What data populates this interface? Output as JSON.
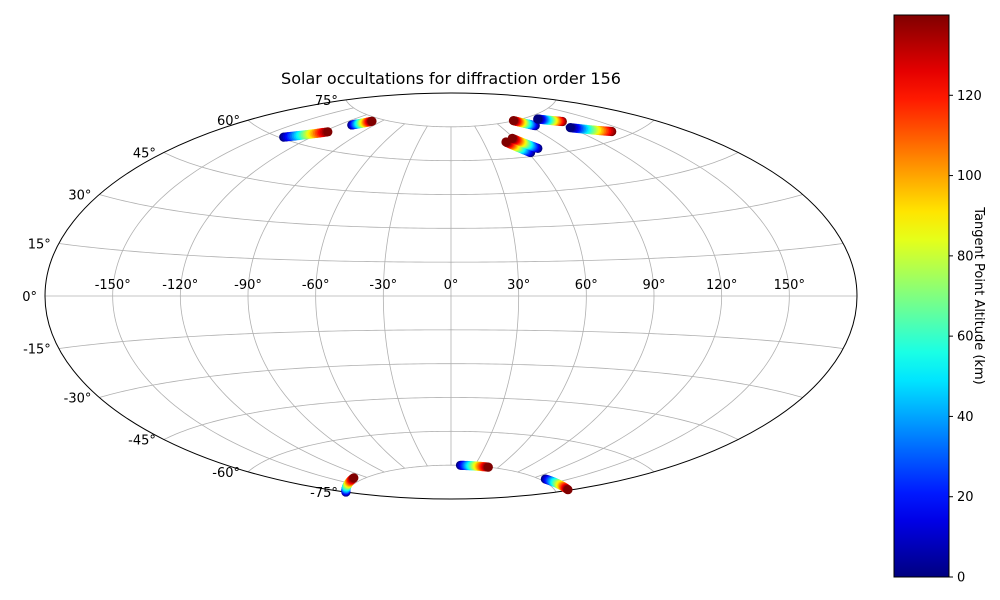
{
  "chart_data": {
    "type": "scatter",
    "projection": "aitoff",
    "title": "Solar occultations for diffraction order 156",
    "grid": true,
    "lon_ticks": [
      -150,
      -120,
      -90,
      -60,
      -30,
      0,
      30,
      60,
      90,
      120,
      150
    ],
    "lon_tick_labels": [
      "-150°",
      "-120°",
      "-90°",
      "-60°",
      "-30°",
      "0°",
      "30°",
      "60°",
      "90°",
      "120°",
      "150°"
    ],
    "lat_ticks": [
      -75,
      -60,
      -45,
      -30,
      -15,
      0,
      15,
      30,
      45,
      60,
      75
    ],
    "lat_tick_labels": [
      "-75°",
      "-60°",
      "-45°",
      "-30°",
      "-15°",
      "0°",
      "15°",
      "30°",
      "45°",
      "60°",
      "75°"
    ],
    "colorbar": {
      "label": "Tangent Point Altitude (km)",
      "range": [
        0,
        140
      ],
      "ticks": [
        0,
        20,
        40,
        60,
        80,
        100,
        120
      ],
      "tick_labels": [
        "0",
        "20",
        "40",
        "60",
        "80",
        "100",
        "120"
      ],
      "colormap": "jet"
    },
    "series": [
      {
        "lon": [
          -137.0,
          -116.5
        ],
        "lat": [
          60.5,
          66.2
        ],
        "alt": [
          0,
          140
        ]
      },
      {
        "lon": [
          -110.0,
          -99.5
        ],
        "lat": [
          70.5,
          73.5
        ],
        "alt": [
          0,
          140
        ]
      },
      {
        "lon": [
          62.0,
          50.0
        ],
        "lat": [
          61.7,
          67.1
        ],
        "alt": [
          0,
          140
        ]
      },
      {
        "lon": [
          70.5,
          58.5
        ],
        "lat": [
          63.0,
          68.3
        ],
        "alt": [
          0,
          140
        ]
      },
      {
        "lon": [
          96.0,
          84.0
        ],
        "lat": [
          71.6,
          75.1
        ],
        "alt": [
          0,
          140
        ]
      },
      {
        "lon": [
          126.0,
          111.5
        ],
        "lat": [
          70.3,
          73.5
        ],
        "alt": [
          140,
          0
        ]
      },
      {
        "lon": [
          141.0,
          120.5
        ],
        "lat": [
          62.6,
          67.8
        ],
        "alt": [
          140,
          0
        ]
      },
      {
        "lon": [
          -180.0,
          -132.0
        ],
        "lat": [
          -75.0,
          -73.7
        ],
        "alt": [
          0,
          140
        ]
      },
      {
        "lon": [
          12.0,
          48.0
        ],
        "lat": [
          -75.0,
          -75.0
        ],
        "alt": [
          0,
          140
        ]
      },
      {
        "lon": [
          133.0,
          178.0
        ],
        "lat": [
          -74.3,
          -73.2
        ],
        "alt": [
          0,
          140
        ]
      }
    ]
  }
}
